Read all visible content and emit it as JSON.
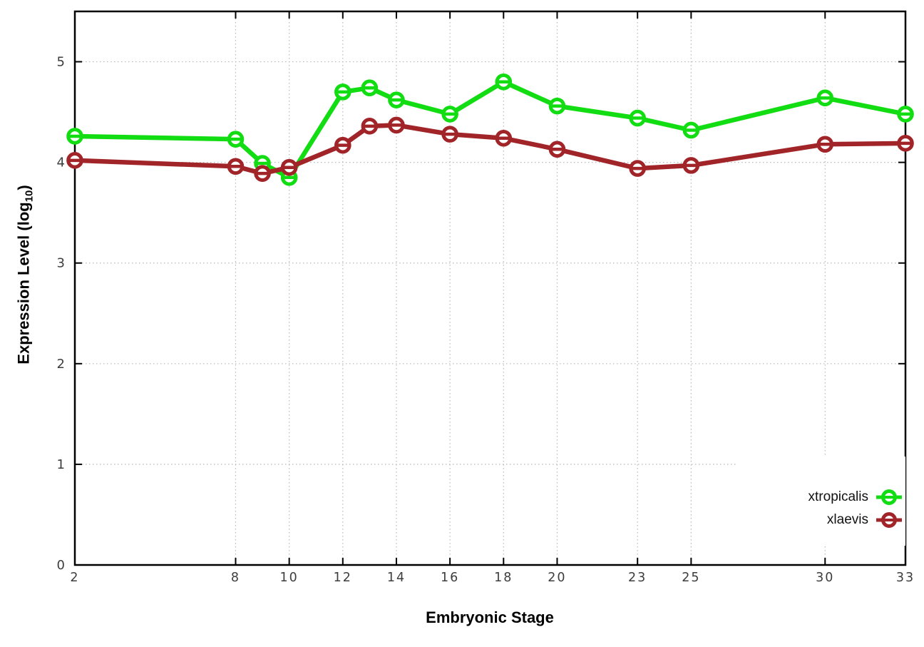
{
  "chart_data": {
    "type": "line",
    "title": "",
    "xlabel": "Embryonic Stage",
    "ylabel": "Expression Level (log10)",
    "ylabel_prefix": "Expression Level (log",
    "ylabel_sub": "10",
    "ylabel_suffix": ")",
    "x": [
      2,
      8,
      9,
      10,
      12,
      13,
      14,
      16,
      18,
      20,
      23,
      25,
      30,
      33
    ],
    "xticks": [
      "2",
      "8",
      "10",
      "12",
      "14",
      "16",
      "18",
      "20",
      "23",
      "25",
      "30",
      "33"
    ],
    "yticks": [
      "0",
      "1",
      "2",
      "3",
      "4",
      "5"
    ],
    "xlim": [
      2,
      33
    ],
    "ylim": [
      0,
      5.5
    ],
    "grid": true,
    "legend_position": "inside bottom right",
    "series": [
      {
        "name": "xtropicalis",
        "color": "#12dd12",
        "marker": "open-circle-hbar",
        "values": [
          4.26,
          4.23,
          3.99,
          3.85,
          4.7,
          4.74,
          4.62,
          4.48,
          4.8,
          4.56,
          4.44,
          4.32,
          4.64,
          4.48
        ]
      },
      {
        "name": "xlaevis",
        "color": "#a12428",
        "marker": "open-circle-hbar",
        "values": [
          4.02,
          3.96,
          3.89,
          3.95,
          4.17,
          4.36,
          4.37,
          4.28,
          4.24,
          4.13,
          3.94,
          3.97,
          4.18,
          4.19
        ]
      }
    ]
  },
  "colors": {
    "background": "#ffffff",
    "axis": "#000000",
    "tick_label": "#3d3d3d",
    "grid": "#b8b8b8"
  }
}
